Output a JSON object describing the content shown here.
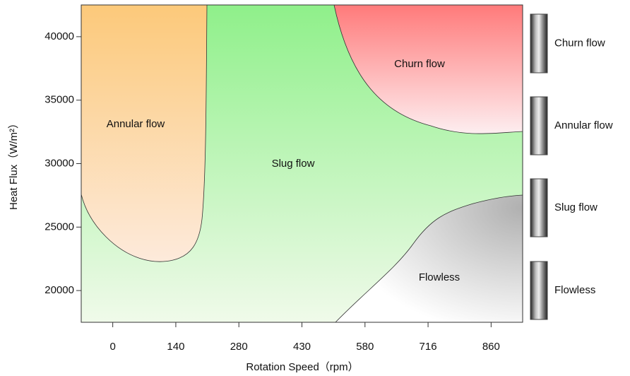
{
  "chart_data": {
    "type": "regime-map",
    "x_label": "Rotation Speed（rpm）",
    "y_label": "Heat Flux（W/m²）",
    "categories": [
      "0",
      "140",
      "280",
      "430",
      "580",
      "716",
      "860"
    ],
    "ylim": [
      17500,
      42500
    ],
    "yticks": [
      20000,
      25000,
      30000,
      35000,
      40000
    ],
    "regions": [
      {
        "name": "Slug flow",
        "color": "#8ff08a"
      },
      {
        "name": "Annular flow",
        "color": "#fcc97a"
      },
      {
        "name": "Churn flow",
        "color": "#ff7a7a"
      },
      {
        "name": "Flowless",
        "color": "#b0b0b0"
      }
    ],
    "legend": [
      "Churn flow",
      "Annular flow",
      "Slug flow",
      "Flowless"
    ]
  }
}
